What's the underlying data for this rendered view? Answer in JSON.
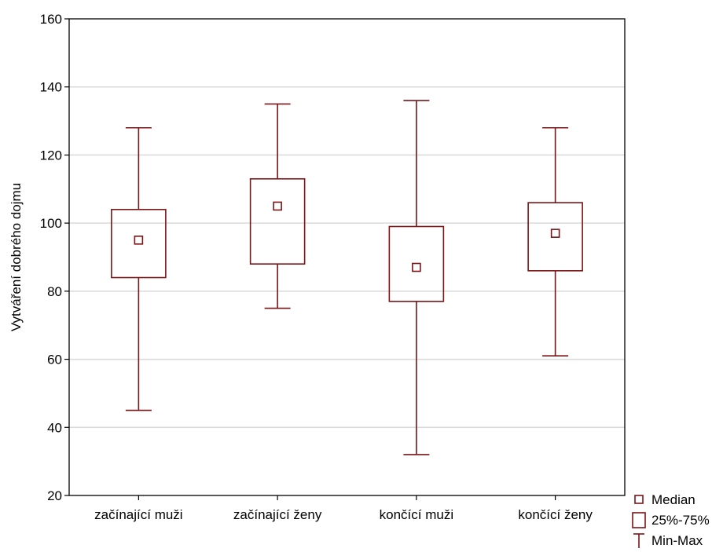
{
  "chart_data": {
    "type": "boxplot",
    "title": "",
    "xlabel": "",
    "ylabel": "Vytváření dobrého dojmu",
    "ylim": [
      20,
      160
    ],
    "yticks": [
      20,
      40,
      60,
      80,
      100,
      120,
      140,
      160
    ],
    "grid": true,
    "legend_position": "bottom-right",
    "categories": [
      "začínající muži",
      "začínající ženy",
      "končící muži",
      "končící ženy"
    ],
    "series": [
      {
        "min": 45,
        "q1": 84,
        "median": 95,
        "q3": 104,
        "max": 128
      },
      {
        "min": 75,
        "q1": 88,
        "median": 105,
        "q3": 113,
        "max": 135
      },
      {
        "min": 32,
        "q1": 77,
        "median": 87,
        "q3": 99,
        "max": 136
      },
      {
        "min": 61,
        "q1": 86,
        "median": 97,
        "q3": 106,
        "max": 128
      }
    ],
    "legend": [
      {
        "key": "median",
        "label": "Median"
      },
      {
        "key": "box",
        "label": "25%-75%"
      },
      {
        "key": "whisker",
        "label": "Min-Max"
      }
    ],
    "colors": {
      "mark": "#7b1416",
      "grid": "#d9d9d9",
      "axis": "#000000"
    }
  }
}
